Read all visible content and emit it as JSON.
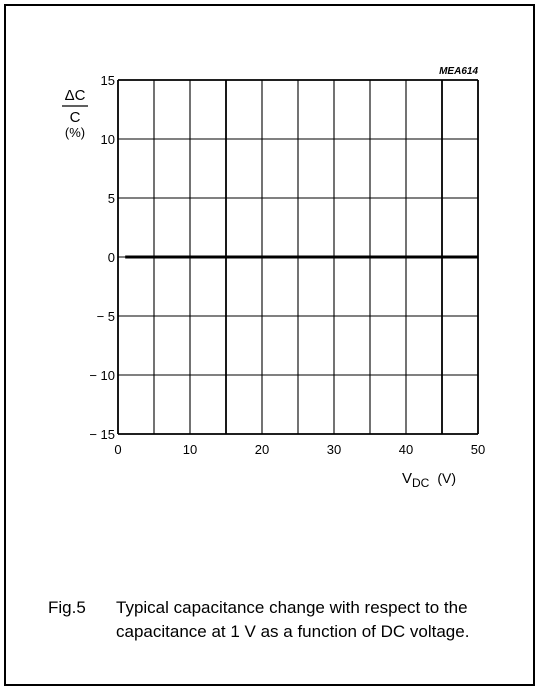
{
  "chart_data": {
    "type": "line",
    "code": "MEA614",
    "ylabel_num": "ΔC",
    "ylabel_den": "C",
    "ylabel_unit": "(%)",
    "xlabel_main": "V",
    "xlabel_sub": "DC",
    "xlabel_unit": "(V)",
    "xlim": [
      0,
      50
    ],
    "ylim": [
      -15,
      15
    ],
    "xticks": [
      0,
      10,
      20,
      30,
      40,
      50
    ],
    "yticks": [
      15,
      10,
      5,
      0,
      -5,
      -10,
      -15
    ],
    "ytick_labels": [
      "15",
      "10",
      "5",
      "0",
      "− 5",
      "− 10",
      "− 15"
    ],
    "x_minor_grid": [
      5,
      15,
      25,
      35,
      45
    ],
    "x_bold_grid": [
      15,
      45
    ],
    "grid": true,
    "series": [
      {
        "x": [
          1,
          50
        ],
        "y": [
          0,
          0
        ]
      }
    ]
  },
  "caption": {
    "number": "Fig.5",
    "text": "Typical capacitance change with respect to the capacitance at 1 V as a function of DC voltage."
  }
}
